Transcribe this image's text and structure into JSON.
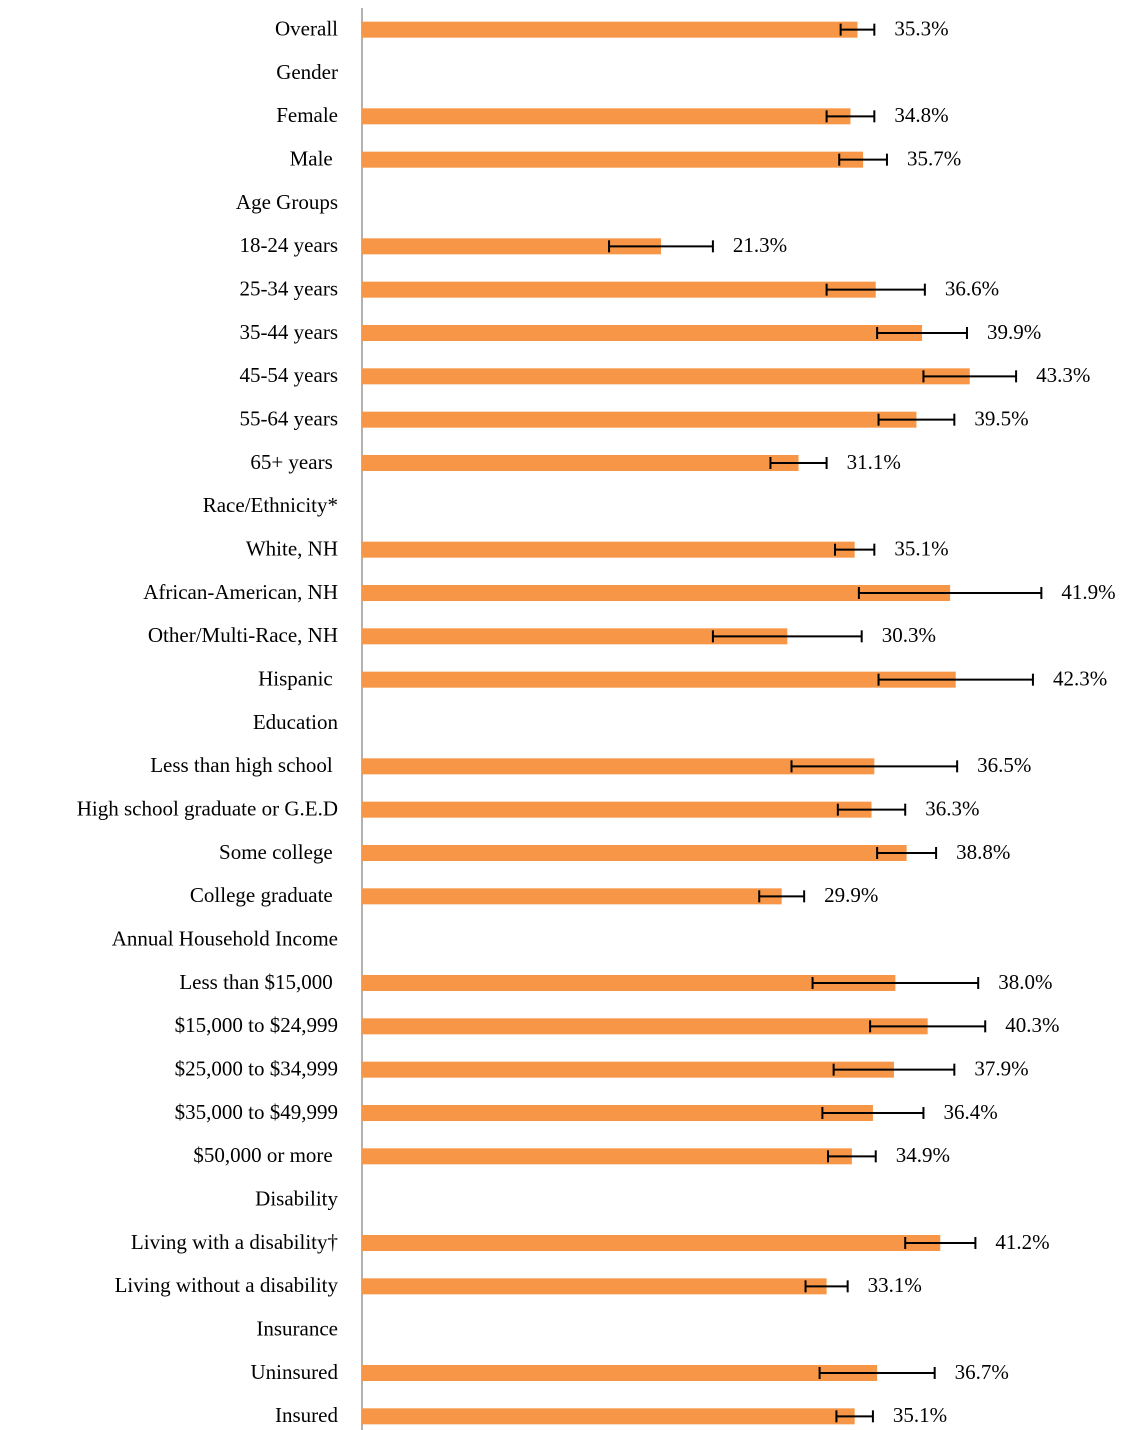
{
  "chart_data": {
    "type": "hbar",
    "categories": [
      "Overall",
      "Gender",
      "Female",
      "Male ",
      "Age Groups",
      "18-24 years",
      "25-34 years",
      "35-44 years",
      "45-54 years",
      "55-64 years",
      "65+ years ",
      "Race/Ethnicity*",
      "White, NH",
      "African-American, NH",
      "Other/Multi-Race, NH",
      "Hispanic ",
      "Education",
      "Less than high school ",
      "High school graduate or G.E.D",
      "Some college ",
      "College graduate ",
      "Annual Household Income",
      "Less than $15,000 ",
      "$15,000 to $24,999",
      "$25,000 to $34,999",
      "$35,000 to $49,999",
      "$50,000 or more ",
      "Disability",
      "Living with a disability†",
      "Living without a disability",
      "Insurance",
      "Uninsured",
      "Insured"
    ],
    "values": [
      35.3,
      null,
      34.8,
      35.7,
      null,
      21.3,
      36.6,
      39.9,
      43.3,
      39.5,
      31.1,
      null,
      35.1,
      41.9,
      30.3,
      42.3,
      null,
      36.5,
      36.3,
      38.8,
      29.9,
      null,
      38.0,
      40.3,
      37.9,
      36.4,
      34.9,
      null,
      41.2,
      33.1,
      null,
      36.7,
      35.1
    ],
    "value_labels": [
      "35.3%",
      null,
      "34.8%",
      "35.7%",
      null,
      "21.3%",
      "36.6%",
      "39.9%",
      "43.3%",
      "39.5%",
      "31.1%",
      null,
      "35.1%",
      "41.9%",
      "30.3%",
      "42.3%",
      null,
      "36.5%",
      "36.3%",
      "38.8%",
      "29.9%",
      null,
      "38.0%",
      "40.3%",
      "37.9%",
      "36.4%",
      "34.9%",
      null,
      "41.2%",
      "33.1%",
      null,
      "36.7%",
      "35.1%"
    ],
    "errors": [
      1.2,
      null,
      1.7,
      1.7,
      null,
      3.7,
      3.5,
      3.2,
      3.3,
      2.7,
      2.0,
      null,
      1.4,
      6.5,
      5.3,
      5.5,
      null,
      5.9,
      2.4,
      2.1,
      1.6,
      null,
      5.9,
      4.1,
      4.3,
      3.6,
      1.7,
      null,
      2.5,
      1.5,
      null,
      4.1,
      1.3
    ],
    "color": "#f79646",
    "xlim": [
      0,
      55
    ]
  }
}
